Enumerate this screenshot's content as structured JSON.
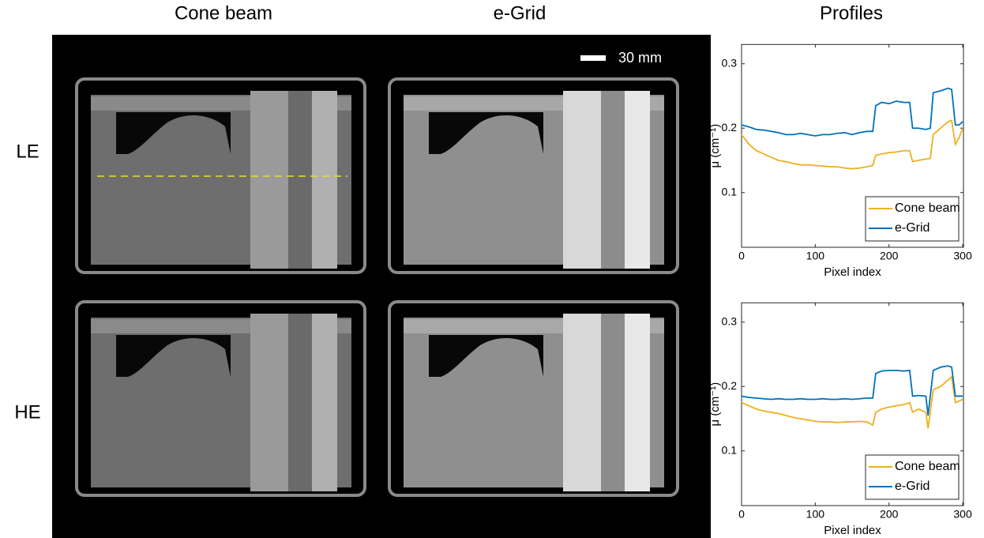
{
  "panel_titles": [
    "Cone beam",
    "e-Grid",
    "Profiles"
  ],
  "row_labels": [
    "LE",
    "HE"
  ],
  "scale_bar": "30 mm",
  "chart_data": [
    {
      "type": "line",
      "xlabel": "Pixel index",
      "ylabel": "μ (cm⁻¹)",
      "xlim": [
        0,
        301
      ],
      "ylim": [
        0.015,
        0.33
      ],
      "xticks": [
        0,
        100,
        200,
        300
      ],
      "yticks": [
        0.1,
        0.2,
        0.3
      ],
      "legend": "lower right",
      "x": [
        0,
        10,
        20,
        30,
        40,
        50,
        60,
        70,
        80,
        90,
        100,
        110,
        120,
        130,
        140,
        150,
        160,
        170,
        178,
        182,
        190,
        200,
        210,
        220,
        228,
        232,
        240,
        250,
        256,
        260,
        270,
        280,
        285,
        290,
        295,
        300
      ],
      "series": [
        {
          "name": "Cone beam",
          "color": "#edb120",
          "values": [
            0.19,
            0.175,
            0.165,
            0.16,
            0.155,
            0.15,
            0.148,
            0.145,
            0.143,
            0.143,
            0.142,
            0.141,
            0.14,
            0.14,
            0.138,
            0.137,
            0.138,
            0.14,
            0.142,
            0.158,
            0.16,
            0.162,
            0.163,
            0.165,
            0.165,
            0.148,
            0.15,
            0.152,
            0.153,
            0.19,
            0.2,
            0.21,
            0.212,
            0.175,
            0.185,
            0.2
          ]
        },
        {
          "name": "e-Grid",
          "color": "#0072bd",
          "values": [
            0.205,
            0.202,
            0.198,
            0.197,
            0.195,
            0.193,
            0.19,
            0.19,
            0.192,
            0.19,
            0.188,
            0.19,
            0.19,
            0.192,
            0.193,
            0.19,
            0.193,
            0.195,
            0.195,
            0.235,
            0.24,
            0.238,
            0.242,
            0.24,
            0.24,
            0.2,
            0.2,
            0.198,
            0.2,
            0.255,
            0.258,
            0.262,
            0.26,
            0.205,
            0.205,
            0.21
          ]
        }
      ]
    },
    {
      "type": "line",
      "xlabel": "Pixel index",
      "ylabel": "μ (cm⁻¹)",
      "xlim": [
        0,
        301
      ],
      "ylim": [
        0.015,
        0.33
      ],
      "xticks": [
        0,
        100,
        200,
        300
      ],
      "yticks": [
        0.1,
        0.2,
        0.3
      ],
      "legend": "lower right",
      "x": [
        0,
        10,
        20,
        30,
        40,
        50,
        60,
        70,
        80,
        90,
        100,
        110,
        120,
        130,
        140,
        150,
        160,
        170,
        178,
        182,
        190,
        200,
        210,
        220,
        228,
        232,
        240,
        250,
        253,
        256,
        260,
        270,
        280,
        285,
        290,
        300
      ],
      "series": [
        {
          "name": "Cone beam",
          "color": "#edb120",
          "values": [
            0.175,
            0.17,
            0.165,
            0.162,
            0.16,
            0.158,
            0.155,
            0.152,
            0.15,
            0.148,
            0.146,
            0.145,
            0.145,
            0.144,
            0.145,
            0.145,
            0.146,
            0.145,
            0.14,
            0.16,
            0.165,
            0.168,
            0.17,
            0.172,
            0.175,
            0.16,
            0.165,
            0.16,
            0.135,
            0.16,
            0.195,
            0.2,
            0.21,
            0.215,
            0.175,
            0.18
          ]
        },
        {
          "name": "e-Grid",
          "color": "#0072bd",
          "values": [
            0.185,
            0.183,
            0.182,
            0.181,
            0.18,
            0.181,
            0.18,
            0.18,
            0.181,
            0.18,
            0.18,
            0.181,
            0.18,
            0.18,
            0.181,
            0.18,
            0.181,
            0.182,
            0.182,
            0.22,
            0.224,
            0.225,
            0.225,
            0.224,
            0.225,
            0.185,
            0.186,
            0.185,
            0.155,
            0.185,
            0.225,
            0.23,
            0.232,
            0.23,
            0.185,
            0.185
          ]
        }
      ]
    }
  ]
}
